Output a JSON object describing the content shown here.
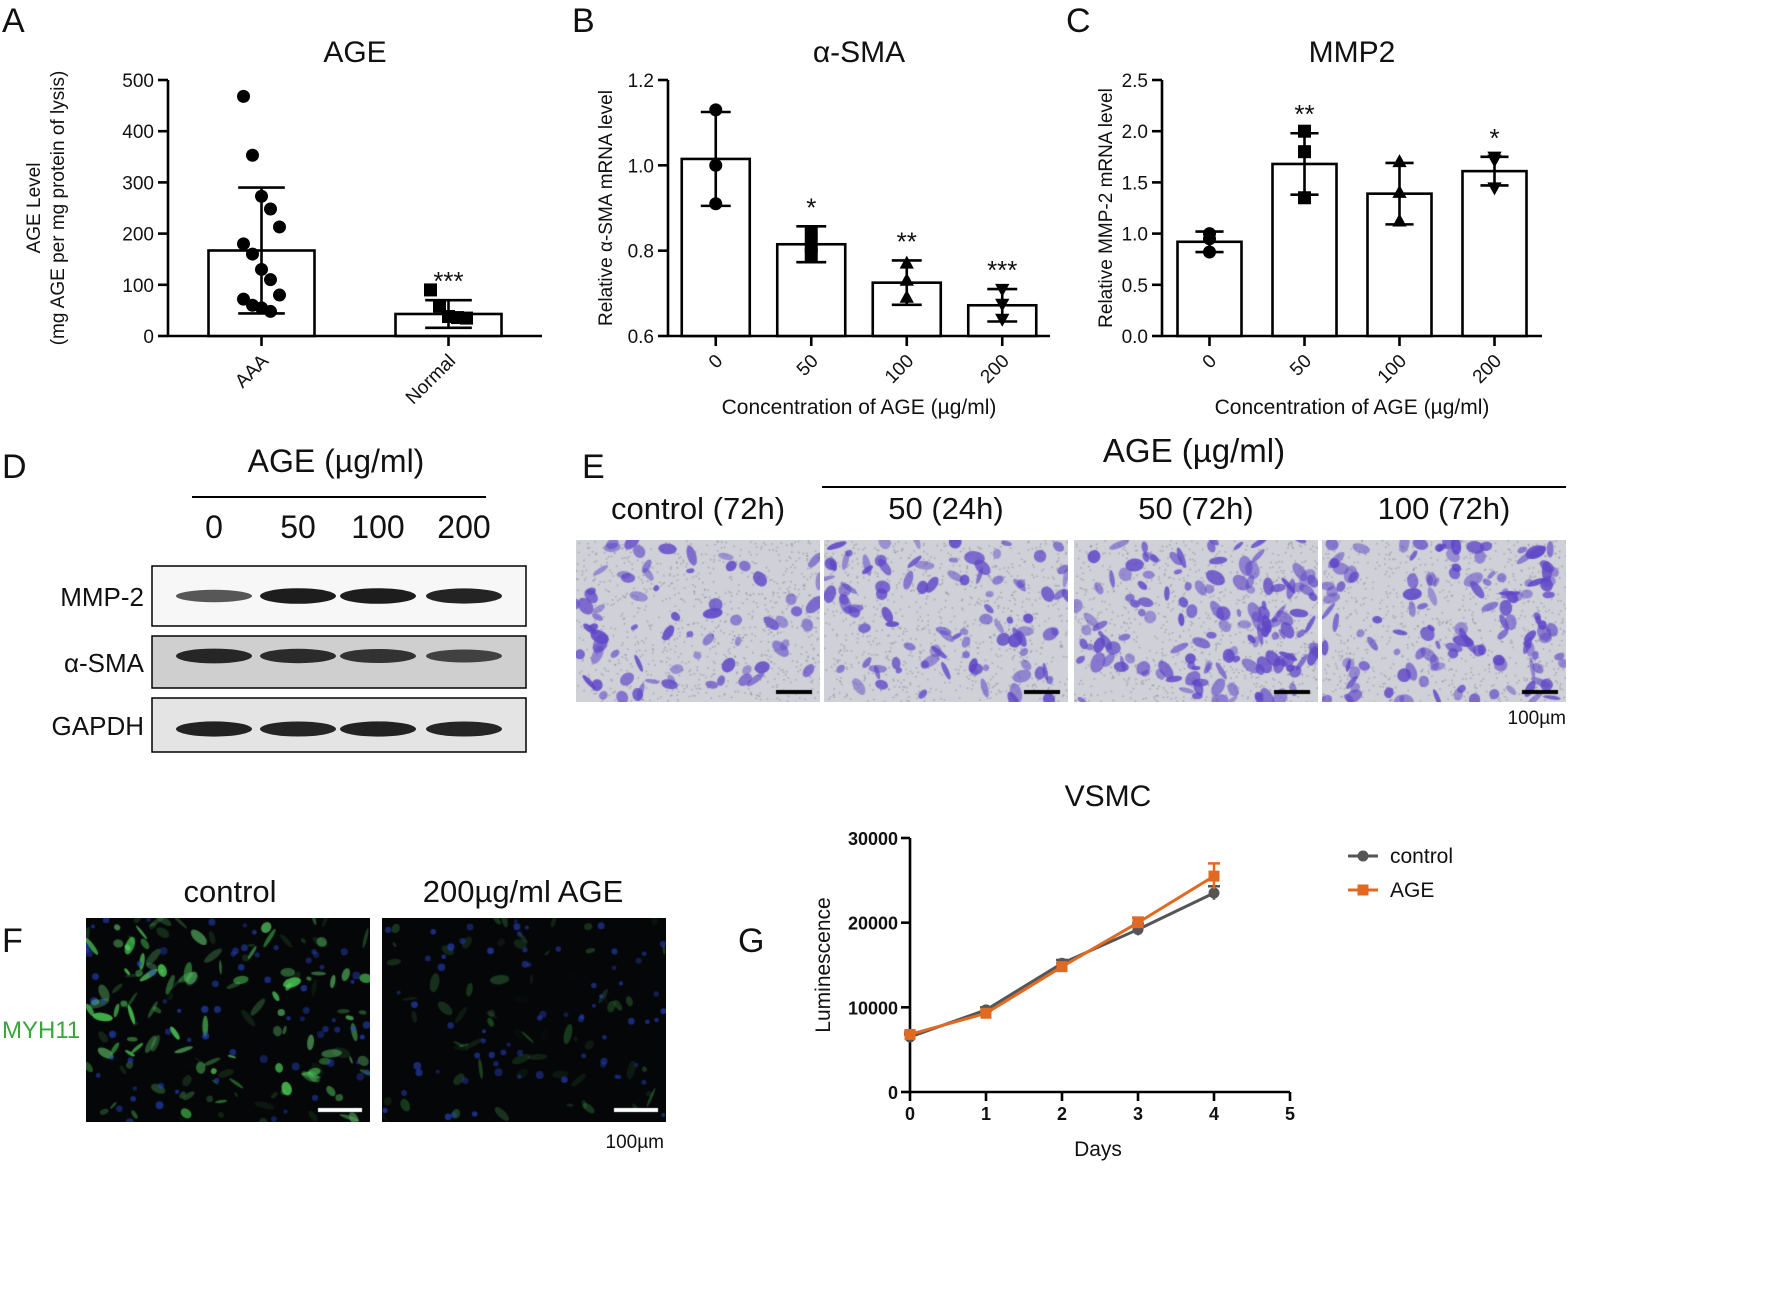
{
  "panel_letters": [
    "A",
    "B",
    "C",
    "D",
    "E",
    "F",
    "G"
  ],
  "panel_d": {
    "header": "AGE (µg/ml)",
    "lanes": [
      "0",
      "50",
      "100",
      "200"
    ],
    "rows": [
      {
        "label": "MMP-2",
        "bands": [
          0.55,
          0.95,
          0.95,
          0.9
        ]
      },
      {
        "label": "α-SMA",
        "bands": [
          0.85,
          0.8,
          0.75,
          0.62
        ]
      },
      {
        "label": "GAPDH",
        "bands": [
          0.9,
          0.88,
          0.9,
          0.88
        ]
      }
    ]
  },
  "panel_e": {
    "header": "AGE (µg/ml)",
    "conditions": [
      "control (72h)",
      "50 (24h)",
      "50 (72h)",
      "100 (72h)"
    ],
    "density": [
      0.35,
      0.55,
      0.9,
      0.8
    ],
    "scale_label": "100µm",
    "stain_color": "#6a4fc8"
  },
  "panel_f": {
    "row_label": "MYH11",
    "row_label_color": "#3aa53a",
    "conditions": [
      "control",
      "200µg/ml AGE"
    ],
    "green_intensity": [
      0.9,
      0.25
    ],
    "scale_label": "100µm"
  },
  "chart_data": [
    {
      "id": "A",
      "type": "bar",
      "title": "AGE",
      "ylabel": "AGE Level",
      "ylabel2": "(mg AGE per mg protein of lysis)",
      "categories": [
        "AAA",
        "Normal"
      ],
      "values": [
        167,
        43
      ],
      "errors": [
        123,
        27
      ],
      "ylim": [
        0,
        500
      ],
      "yticks": [
        "0",
        "100",
        "200",
        "300",
        "400",
        "500"
      ],
      "marker": [
        "circle",
        "square"
      ],
      "points": [
        [
          468,
          353,
          273,
          248,
          213,
          180,
          160,
          130,
          110,
          80,
          72,
          60,
          55,
          48
        ],
        [
          90,
          58,
          38,
          36,
          35
        ]
      ],
      "significance": [
        "",
        "***"
      ],
      "xlabel": ""
    },
    {
      "id": "B",
      "type": "bar",
      "title": "α-SMA",
      "ylabel": "Relative α-SMA mRNA level",
      "xlabel": "Concentration of AGE (µg/ml)",
      "categories": [
        "0",
        "50",
        "100",
        "200"
      ],
      "values": [
        1.015,
        0.815,
        0.725,
        0.672
      ],
      "errors": [
        0.11,
        0.042,
        0.052,
        0.038
      ],
      "ylim": [
        0.6,
        1.2
      ],
      "yticks": [
        "0.6",
        "0.8",
        "1.0",
        "1.2"
      ],
      "marker": [
        "circle",
        "square",
        "triangle-up",
        "triangle-down"
      ],
      "points": [
        [
          1.13,
          1.0,
          0.91
        ],
        [
          0.84,
          0.81,
          0.79
        ],
        [
          0.77,
          0.73,
          0.69
        ],
        [
          0.71,
          0.675,
          0.64
        ]
      ],
      "significance": [
        "",
        "*",
        "**",
        "***"
      ]
    },
    {
      "id": "C",
      "type": "bar",
      "title": "MMP2",
      "ylabel": "Relative MMP-2 mRNA level",
      "xlabel": "Concentration of AGE (µg/ml)",
      "categories": [
        "0",
        "50",
        "100",
        "200"
      ],
      "values": [
        0.92,
        1.68,
        1.39,
        1.61
      ],
      "errors": [
        0.1,
        0.3,
        0.3,
        0.14
      ],
      "ylim": [
        0,
        2.5
      ],
      "yticks": [
        "0.0",
        "0.5",
        "1.0",
        "1.5",
        "2.0",
        "2.5"
      ],
      "marker": [
        "circle",
        "square",
        "triangle-up",
        "triangle-down"
      ],
      "points": [
        [
          1.0,
          0.95,
          0.82
        ],
        [
          2.0,
          1.8,
          1.35
        ],
        [
          1.7,
          1.4,
          1.12
        ],
        [
          1.75,
          1.72,
          1.45
        ]
      ],
      "significance": [
        "",
        "**",
        "",
        "*"
      ]
    },
    {
      "id": "G",
      "type": "line",
      "title": "VSMC",
      "xlabel": "Days",
      "ylabel": "Luminescence",
      "x": [
        0,
        1,
        2,
        3,
        4
      ],
      "xlim": [
        0,
        5
      ],
      "xticks": [
        "0",
        "1",
        "2",
        "3",
        "4",
        "5"
      ],
      "ylim": [
        0,
        30000
      ],
      "yticks": [
        "0",
        "10000",
        "20000",
        "30000"
      ],
      "series": [
        {
          "name": "control",
          "color": "#555555",
          "marker": "circle",
          "values": [
            6500,
            9700,
            15200,
            19200,
            23500
          ],
          "errors": [
            300,
            300,
            400,
            700,
            800
          ]
        },
        {
          "name": "AGE",
          "color": "#e06a22",
          "marker": "square",
          "values": [
            6800,
            9300,
            14800,
            20000,
            25500
          ],
          "errors": [
            300,
            300,
            400,
            600,
            1500
          ]
        }
      ],
      "legend": "right"
    }
  ]
}
